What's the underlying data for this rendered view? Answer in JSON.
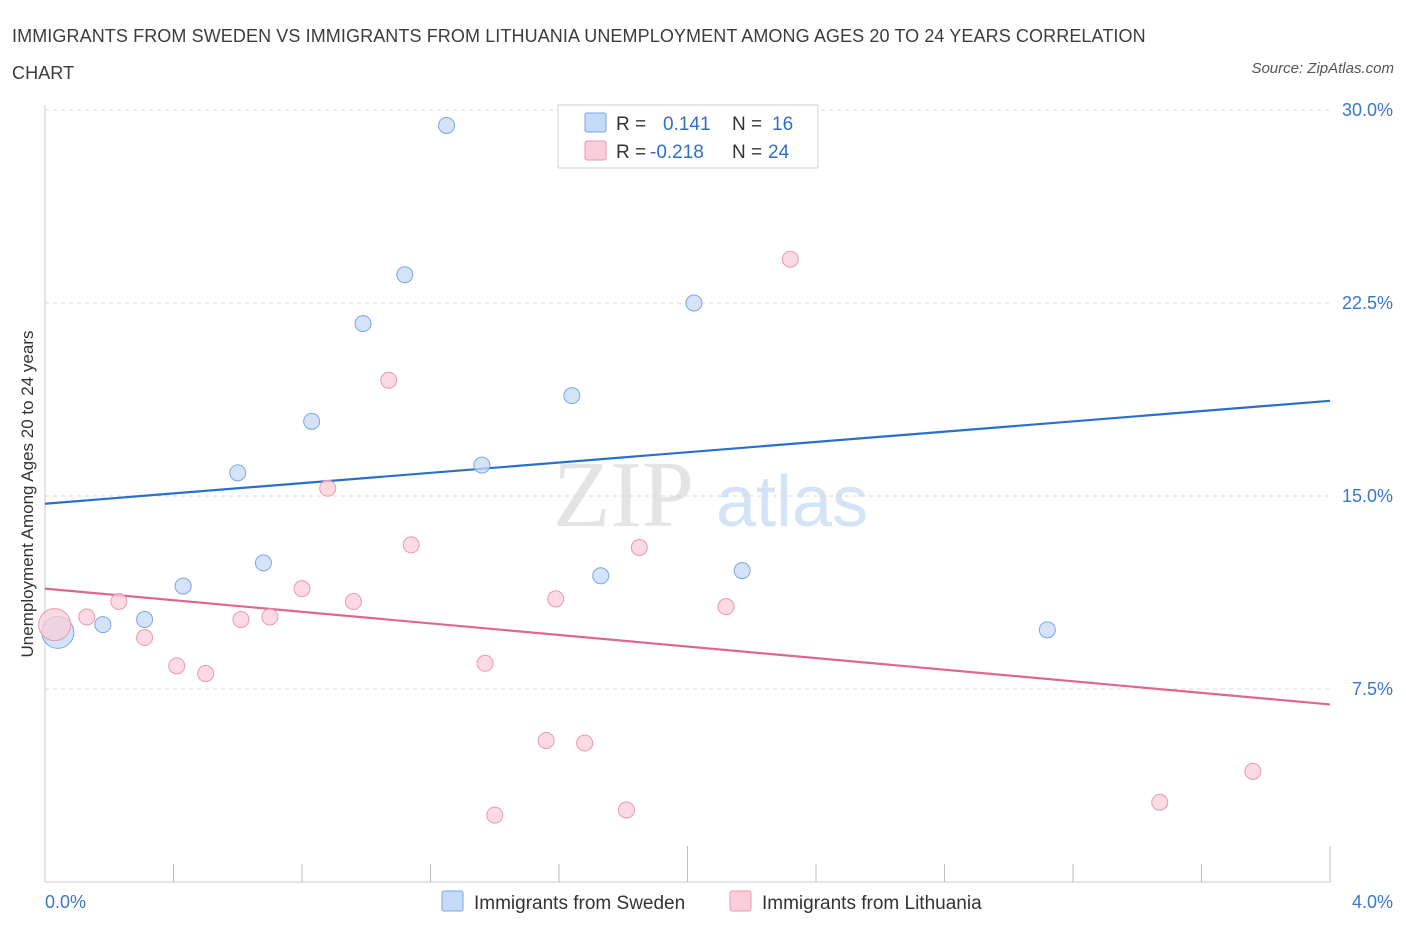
{
  "title": "IMMIGRANTS FROM SWEDEN VS IMMIGRANTS FROM LITHUANIA UNEMPLOYMENT AMONG AGES 20 TO 24 YEARS CORRELATION CHART",
  "source": "Source: ZipAtlas.com",
  "watermark": {
    "zip": "ZIP",
    "atlas": "atlas"
  },
  "legend_box": {
    "rows": [
      {
        "r_label": "R =",
        "r_value": "0.141",
        "n_label": "N =",
        "n_value": "16"
      },
      {
        "r_label": "R =",
        "r_value": "-0.218",
        "n_label": "N =",
        "n_value": "24"
      }
    ]
  },
  "colors": {
    "sweden_fill": "#c5daf6",
    "sweden_stroke": "#7aa7e0",
    "sweden_line": "#2a6fcc",
    "lithuania_fill": "#f9cdd9",
    "lithuania_stroke": "#e89ab0",
    "lithuania_line": "#e0668f",
    "tick_text": "#3a77c8",
    "grid": "#d8d8d8"
  },
  "chart_data": {
    "type": "scatter",
    "title": "IMMIGRANTS FROM SWEDEN VS IMMIGRANTS FROM LITHUANIA UNEMPLOYMENT AMONG AGES 20 TO 24 YEARS CORRELATION CHART",
    "xlabel": "",
    "ylabel": "Unemployment Among Ages 20 to 24 years",
    "xlim": [
      0,
      4
    ],
    "ylim": [
      0,
      30
    ],
    "x_tick_labels": [
      "0.0%",
      "4.0%"
    ],
    "y_ticks": [
      7.5,
      15,
      22.5,
      30
    ],
    "y_tick_labels": [
      "7.5%",
      "15.0%",
      "22.5%",
      "30.0%"
    ],
    "grid": true,
    "legend_position": "bottom-center",
    "series": [
      {
        "name": "Immigrants from Sweden",
        "r": 0.141,
        "n": 16,
        "points": [
          {
            "x": 0.04,
            "y": 9.7,
            "big": true
          },
          {
            "x": 0.18,
            "y": 10.0
          },
          {
            "x": 0.31,
            "y": 10.2
          },
          {
            "x": 0.43,
            "y": 11.5
          },
          {
            "x": 0.6,
            "y": 15.9
          },
          {
            "x": 0.68,
            "y": 12.4
          },
          {
            "x": 0.83,
            "y": 17.9
          },
          {
            "x": 0.99,
            "y": 21.7
          },
          {
            "x": 1.12,
            "y": 23.6
          },
          {
            "x": 1.25,
            "y": 29.4
          },
          {
            "x": 1.36,
            "y": 16.2
          },
          {
            "x": 1.64,
            "y": 18.9
          },
          {
            "x": 1.73,
            "y": 11.9
          },
          {
            "x": 2.02,
            "y": 22.5
          },
          {
            "x": 2.17,
            "y": 12.1
          },
          {
            "x": 3.12,
            "y": 9.8
          }
        ],
        "trend": {
          "x": [
            0,
            4
          ],
          "y": [
            14.7,
            18.7
          ]
        }
      },
      {
        "name": "Immigrants from Lithuania",
        "r": -0.218,
        "n": 24,
        "points": [
          {
            "x": 0.03,
            "y": 10.0,
            "big": true
          },
          {
            "x": 0.13,
            "y": 10.3
          },
          {
            "x": 0.23,
            "y": 10.9
          },
          {
            "x": 0.31,
            "y": 9.5
          },
          {
            "x": 0.41,
            "y": 8.4
          },
          {
            "x": 0.5,
            "y": 8.1
          },
          {
            "x": 0.61,
            "y": 10.2
          },
          {
            "x": 0.7,
            "y": 10.3
          },
          {
            "x": 0.8,
            "y": 11.4
          },
          {
            "x": 0.88,
            "y": 15.3
          },
          {
            "x": 0.96,
            "y": 10.9
          },
          {
            "x": 1.07,
            "y": 19.5
          },
          {
            "x": 1.14,
            "y": 13.1
          },
          {
            "x": 1.37,
            "y": 8.5
          },
          {
            "x": 1.4,
            "y": 2.6
          },
          {
            "x": 1.56,
            "y": 5.5
          },
          {
            "x": 1.59,
            "y": 11.0
          },
          {
            "x": 1.68,
            "y": 5.4
          },
          {
            "x": 1.81,
            "y": 2.8
          },
          {
            "x": 1.85,
            "y": 13.0
          },
          {
            "x": 2.12,
            "y": 10.7
          },
          {
            "x": 2.32,
            "y": 24.2
          },
          {
            "x": 3.47,
            "y": 3.1
          },
          {
            "x": 3.76,
            "y": 4.3
          }
        ],
        "trend": {
          "x": [
            0,
            4
          ],
          "y": [
            11.4,
            6.9
          ]
        }
      }
    ]
  }
}
